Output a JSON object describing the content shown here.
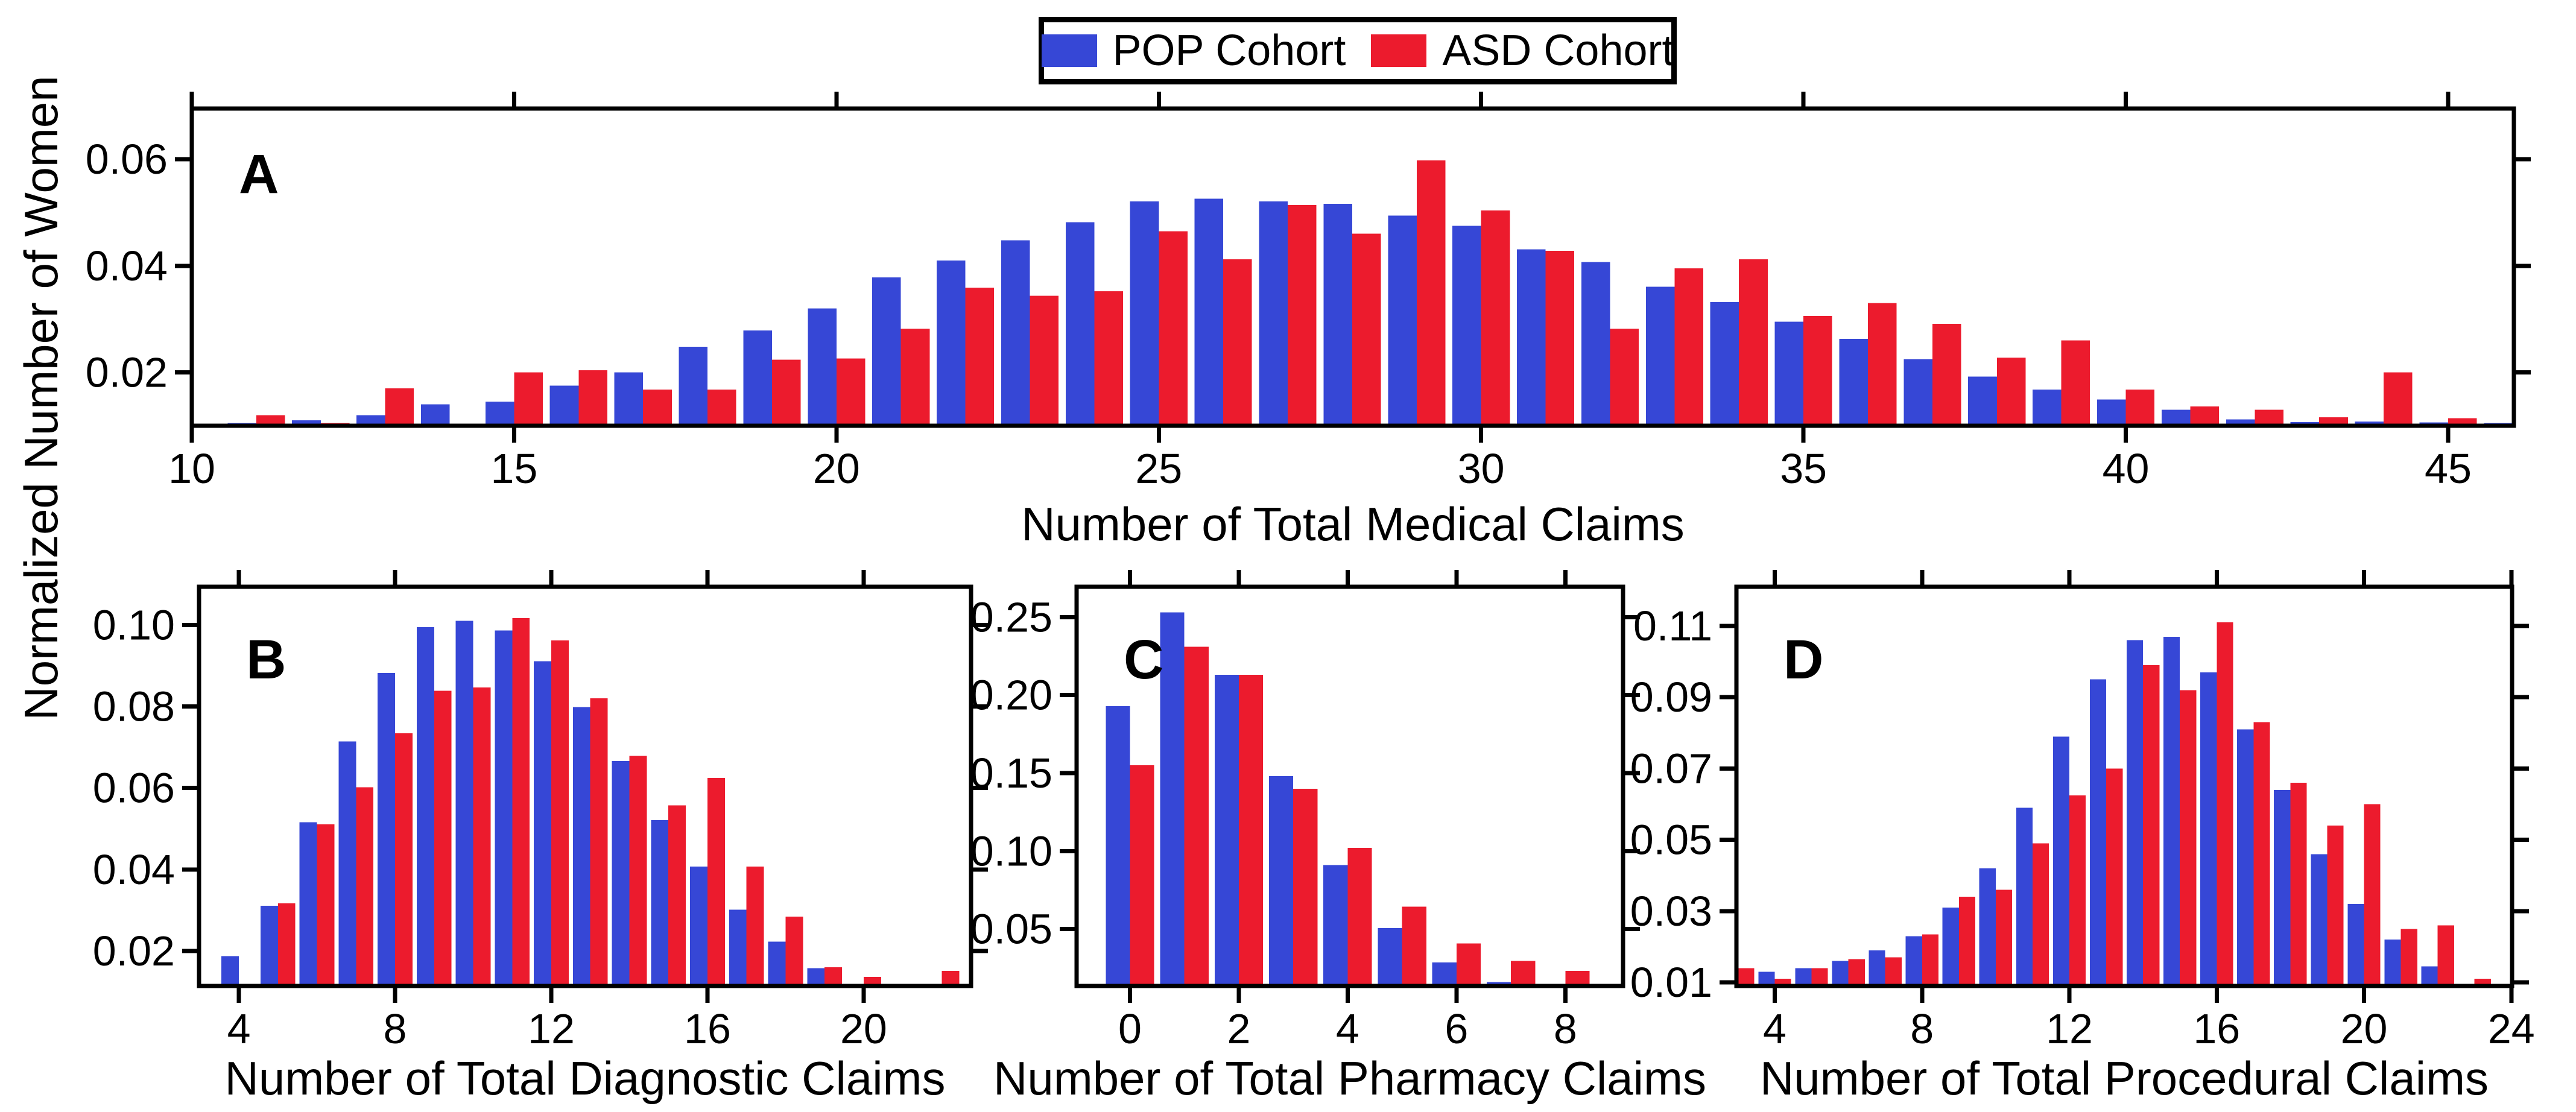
{
  "figure": {
    "background": "#ffffff",
    "shared_ylabel": "Normalized Number of Women"
  },
  "colors": {
    "pop": "#3647d6",
    "asd": "#ec1b2d",
    "axis": "#000000",
    "text": "#000000"
  },
  "legend": {
    "position": "top-center",
    "items": [
      {
        "label": "POP Cohort",
        "color": "#3647d6"
      },
      {
        "label": "ASD Cohort",
        "color": "#ec1b2d"
      }
    ]
  },
  "chart_data": [
    {
      "type": "bar",
      "panel": "A",
      "xlabel": "Number of Total Medical Claims",
      "ylabel": "Normalized Number of Women",
      "x": [
        11,
        12,
        13,
        14,
        15,
        16,
        17,
        18,
        19,
        20,
        21,
        22,
        23,
        24,
        25,
        26,
        27,
        28,
        29,
        30,
        31,
        32,
        33,
        34,
        35,
        36,
        37,
        38,
        39,
        40,
        41,
        42,
        43,
        44,
        45,
        46
      ],
      "series": [
        {
          "name": "POP Cohort",
          "color_key": "pop",
          "values": [
            0.0105,
            0.011,
            0.012,
            0.014,
            0.0145,
            0.0175,
            0.02,
            0.0248,
            0.0279,
            0.032,
            0.0378,
            0.041,
            0.0448,
            0.0482,
            0.0521,
            0.0526,
            0.0521,
            0.0516,
            0.0494,
            0.0475,
            0.0431,
            0.0407,
            0.0361,
            0.0332,
            0.0295,
            0.0263,
            0.0225,
            0.0192,
            0.0168,
            0.0149,
            0.013,
            0.0112,
            0.0107,
            0.0108,
            0.0106,
            0.0105
          ]
        },
        {
          "name": "ASD Cohort",
          "color_key": "asd",
          "values": [
            0.012,
            0.0105,
            0.017,
            0.0102,
            0.02,
            0.0204,
            0.0168,
            0.0168,
            0.0224,
            0.0226,
            0.0282,
            0.0359,
            0.0344,
            0.0352,
            0.0465,
            0.0412,
            0.0514,
            0.046,
            0.0598,
            0.0504,
            0.0428,
            0.0282,
            0.0395,
            0.0412,
            0.0306,
            0.033,
            0.0291,
            0.0228,
            0.026,
            0.0168,
            0.0136,
            0.013,
            0.0116,
            0.02,
            0.0114,
            null
          ]
        }
      ],
      "xticks": [
        10,
        15,
        20,
        25,
        30,
        35,
        40,
        45
      ],
      "xtick_labels": [
        "10",
        "15",
        "20",
        "25",
        "30",
        "35",
        "40",
        "45"
      ],
      "yticks": [
        0.02,
        0.04,
        0.06
      ],
      "ytick_labels": [
        "0.02",
        "0.04",
        "0.06"
      ],
      "xlim": [
        10,
        46.02
      ],
      "ylim": [
        0.01,
        0.0695
      ],
      "grid": false
    },
    {
      "type": "bar",
      "panel": "B",
      "xlabel": "Number of Total Diagnostic Claims",
      "ylabel": "Normalized Number of Women",
      "x": [
        4,
        5,
        6,
        7,
        8,
        9,
        10,
        11,
        12,
        13,
        14,
        15,
        16,
        17,
        18,
        19,
        20,
        21,
        22
      ],
      "series": [
        {
          "name": "POP Cohort",
          "color_key": "pop",
          "values": [
            0.0187,
            0.0311,
            0.0516,
            0.0714,
            0.0882,
            0.0995,
            0.101,
            0.0987,
            0.0911,
            0.0799,
            0.0666,
            0.0521,
            0.0407,
            0.0301,
            0.0223,
            0.0158,
            0.0117,
            null,
            null
          ]
        },
        {
          "name": "ASD Cohort",
          "color_key": "asd",
          "values": [
            null,
            0.0317,
            0.0511,
            0.0602,
            0.0734,
            0.0839,
            0.0847,
            0.1017,
            0.0962,
            0.082,
            0.0679,
            0.0557,
            0.0625,
            0.0407,
            0.0284,
            0.016,
            0.0136,
            0.0114,
            0.0151
          ]
        }
      ],
      "xticks": [
        4,
        8,
        12,
        16,
        20
      ],
      "xtick_labels": [
        "4",
        "8",
        "12",
        "16",
        "20"
      ],
      "yticks": [
        0.02,
        0.04,
        0.06,
        0.08,
        0.1
      ],
      "ytick_labels": [
        "0.02",
        "0.04",
        "0.06",
        "0.08",
        "0.10"
      ],
      "xlim": [
        2.98,
        22.75
      ],
      "ylim": [
        0.0114,
        0.1094
      ],
      "grid": false
    },
    {
      "type": "bar",
      "panel": "C",
      "xlabel": "Number of Total Pharmacy Claims",
      "ylabel": "Normalized Number of Women",
      "x": [
        0,
        1,
        2,
        3,
        4,
        5,
        6,
        7,
        8
      ],
      "series": [
        {
          "name": "POP Cohort",
          "color_key": "pop",
          "values": [
            0.193,
            0.253,
            0.213,
            0.148,
            0.091,
            0.0506,
            0.0285,
            0.016,
            null
          ]
        },
        {
          "name": "ASD Cohort",
          "color_key": "asd",
          "values": [
            0.155,
            0.231,
            0.213,
            0.14,
            0.102,
            0.0643,
            0.0408,
            0.0295,
            0.0232
          ]
        }
      ],
      "xticks": [
        0,
        2,
        4,
        6,
        8
      ],
      "xtick_labels": [
        "0",
        "2",
        "4",
        "6",
        "8"
      ],
      "yticks": [
        0.05,
        0.1,
        0.15,
        0.2,
        0.25
      ],
      "ytick_labels": [
        "0.05",
        "0.10",
        "0.15",
        "0.20",
        "0.25"
      ],
      "xlim": [
        -0.98,
        9.06
      ],
      "ylim": [
        0.0135,
        0.2695
      ],
      "grid": false
    },
    {
      "type": "bar",
      "panel": "D",
      "xlabel": "Number of Total Procedural Claims",
      "ylabel": "Normalized Number of Women",
      "x": [
        3,
        4,
        5,
        6,
        7,
        8,
        9,
        10,
        11,
        12,
        13,
        14,
        15,
        16,
        17,
        18,
        19,
        20,
        21,
        22,
        23
      ],
      "series": [
        {
          "name": "POP Cohort",
          "color_key": "pop",
          "values": [
            null,
            0.013,
            0.014,
            0.016,
            0.019,
            0.023,
            0.031,
            0.042,
            0.059,
            0.079,
            0.095,
            0.106,
            0.107,
            0.097,
            0.081,
            0.064,
            0.046,
            0.032,
            0.022,
            0.0145,
            null
          ]
        },
        {
          "name": "ASD Cohort",
          "color_key": "asd",
          "values": [
            0.014,
            0.011,
            0.014,
            0.0165,
            0.017,
            0.0235,
            0.034,
            0.036,
            0.049,
            0.0625,
            0.07,
            0.099,
            0.092,
            0.111,
            0.083,
            0.066,
            0.054,
            0.06,
            0.025,
            0.026,
            0.011
          ]
        }
      ],
      "xticks": [
        4,
        8,
        12,
        16,
        20,
        24
      ],
      "xtick_labels": [
        "4",
        "8",
        "12",
        "16",
        "20",
        "24"
      ],
      "yticks": [
        0.01,
        0.03,
        0.05,
        0.07,
        0.09,
        0.11
      ],
      "ytick_labels": [
        "0.01",
        "0.03",
        "0.05",
        "0.07",
        "0.09",
        "0.11"
      ],
      "xlim": [
        2.96,
        24.02
      ],
      "ylim": [
        0.009,
        0.121
      ],
      "grid": false
    }
  ]
}
